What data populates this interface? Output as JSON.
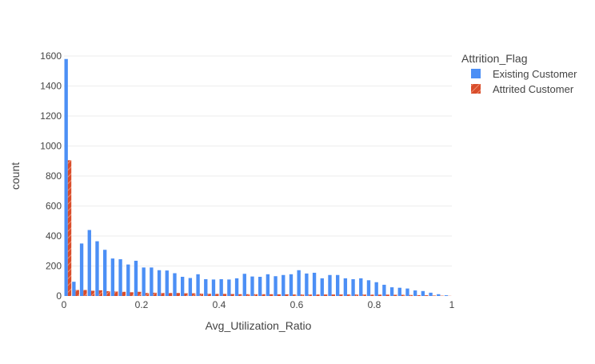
{
  "chart_data": {
    "type": "bar",
    "title": "",
    "xlabel": "Avg_Utilization_Ratio",
    "ylabel": "count",
    "xlim": [
      0,
      1
    ],
    "ylim": [
      0,
      1600
    ],
    "x_ticks": [
      "0",
      "0.2",
      "0.4",
      "0.6",
      "0.8",
      "1"
    ],
    "y_ticks": [
      "0",
      "200",
      "400",
      "600",
      "800",
      "1000",
      "1200",
      "1400",
      "1600"
    ],
    "bin_width": 0.02,
    "bin_starts": [
      0,
      0.02,
      0.04,
      0.06,
      0.08,
      0.1,
      0.12,
      0.14,
      0.16,
      0.18,
      0.2,
      0.22,
      0.24,
      0.26,
      0.28,
      0.3,
      0.32,
      0.34,
      0.36,
      0.38,
      0.4,
      0.42,
      0.44,
      0.46,
      0.48,
      0.5,
      0.52,
      0.54,
      0.56,
      0.58,
      0.6,
      0.62,
      0.64,
      0.66,
      0.68,
      0.7,
      0.72,
      0.74,
      0.76,
      0.78,
      0.8,
      0.82,
      0.84,
      0.86,
      0.88,
      0.9,
      0.92,
      0.94,
      0.96,
      0.98
    ],
    "legend": {
      "title": "Attrition_Flag",
      "placement": "top-right"
    },
    "grid": true,
    "series": [
      {
        "name": "Existing Customer",
        "color": "#4c8ff5",
        "values": [
          1580,
          95,
          350,
          440,
          365,
          308,
          250,
          245,
          210,
          235,
          190,
          190,
          172,
          170,
          152,
          128,
          120,
          145,
          112,
          110,
          112,
          110,
          118,
          148,
          130,
          128,
          145,
          132,
          140,
          145,
          172,
          150,
          155,
          118,
          140,
          140,
          118,
          112,
          118,
          105,
          92,
          75,
          58,
          55,
          50,
          37,
          33,
          22,
          12,
          5
        ]
      },
      {
        "name": "Attrited Customer",
        "color": "#d94d2b",
        "pattern": "diagonal-stripes",
        "values": [
          905,
          40,
          40,
          35,
          38,
          32,
          30,
          28,
          25,
          28,
          20,
          22,
          20,
          20,
          20,
          18,
          18,
          16,
          15,
          14,
          14,
          13,
          12,
          12,
          12,
          12,
          12,
          11,
          11,
          10,
          10,
          10,
          10,
          10,
          10,
          10,
          10,
          10,
          10,
          9,
          9,
          9,
          8,
          8,
          7,
          6,
          5,
          3,
          2,
          1
        ]
      }
    ]
  }
}
